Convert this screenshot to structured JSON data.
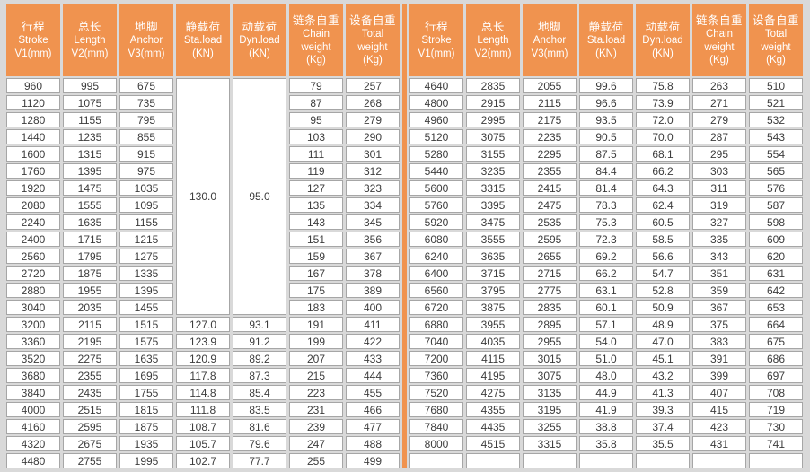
{
  "colors": {
    "header_bg": "#F0934F",
    "header_text": "#FFFFFF",
    "cell_bg": "#FFFFFF",
    "cell_border": "#A6A6A6",
    "cell_text": "#3C3C3C",
    "gutter_bg": "#D9D9D9",
    "divider": "#F0934F"
  },
  "columns": [
    {
      "id": "stroke",
      "lines": [
        "行程",
        "Stroke",
        "V1(mm)"
      ]
    },
    {
      "id": "length",
      "lines": [
        "总长",
        "Length",
        "V2(mm)"
      ]
    },
    {
      "id": "anchor",
      "lines": [
        "地脚",
        "Anchor",
        "V3(mm)"
      ]
    },
    {
      "id": "sta-load",
      "lines": [
        "静载荷",
        "Sta.load",
        "(KN)"
      ]
    },
    {
      "id": "dyn-load",
      "lines": [
        "动载荷",
        "Dyn.load",
        "(KN)"
      ]
    },
    {
      "id": "chain-weight",
      "lines": [
        "链条自重",
        "Chain",
        "weight",
        "(Kg)"
      ]
    },
    {
      "id": "total-weight",
      "lines": [
        "设备自重",
        "Total",
        "weight",
        "(Kg)"
      ]
    }
  ],
  "tables": {
    "left": {
      "merges": [
        {
          "col": 3,
          "row": 0,
          "span": 14,
          "value": "130.0"
        },
        {
          "col": 4,
          "row": 0,
          "span": 14,
          "value": "95.0"
        }
      ],
      "rows": [
        [
          "960",
          "995",
          "675",
          null,
          null,
          "79",
          "257"
        ],
        [
          "1120",
          "1075",
          "735",
          null,
          null,
          "87",
          "268"
        ],
        [
          "1280",
          "1155",
          "795",
          null,
          null,
          "95",
          "279"
        ],
        [
          "1440",
          "1235",
          "855",
          null,
          null,
          "103",
          "290"
        ],
        [
          "1600",
          "1315",
          "915",
          null,
          null,
          "111",
          "301"
        ],
        [
          "1760",
          "1395",
          "975",
          null,
          null,
          "119",
          "312"
        ],
        [
          "1920",
          "1475",
          "1035",
          null,
          null,
          "127",
          "323"
        ],
        [
          "2080",
          "1555",
          "1095",
          null,
          null,
          "135",
          "334"
        ],
        [
          "2240",
          "1635",
          "1155",
          null,
          null,
          "143",
          "345"
        ],
        [
          "2400",
          "1715",
          "1215",
          null,
          null,
          "151",
          "356"
        ],
        [
          "2560",
          "1795",
          "1275",
          null,
          null,
          "159",
          "367"
        ],
        [
          "2720",
          "1875",
          "1335",
          null,
          null,
          "167",
          "378"
        ],
        [
          "2880",
          "1955",
          "1395",
          null,
          null,
          "175",
          "389"
        ],
        [
          "3040",
          "2035",
          "1455",
          null,
          null,
          "183",
          "400"
        ],
        [
          "3200",
          "2115",
          "1515",
          "127.0",
          "93.1",
          "191",
          "411"
        ],
        [
          "3360",
          "2195",
          "1575",
          "123.9",
          "91.2",
          "199",
          "422"
        ],
        [
          "3520",
          "2275",
          "1635",
          "120.9",
          "89.2",
          "207",
          "433"
        ],
        [
          "3680",
          "2355",
          "1695",
          "117.8",
          "87.3",
          "215",
          "444"
        ],
        [
          "3840",
          "2435",
          "1755",
          "114.8",
          "85.4",
          "223",
          "455"
        ],
        [
          "4000",
          "2515",
          "1815",
          "111.8",
          "83.5",
          "231",
          "466"
        ],
        [
          "4160",
          "2595",
          "1875",
          "108.7",
          "81.6",
          "239",
          "477"
        ],
        [
          "4320",
          "2675",
          "1935",
          "105.7",
          "79.6",
          "247",
          "488"
        ],
        [
          "4480",
          "2755",
          "1995",
          "102.7",
          "77.7",
          "255",
          "499"
        ]
      ]
    },
    "right": {
      "merges": [],
      "rows": [
        [
          "4640",
          "2835",
          "2055",
          "99.6",
          "75.8",
          "263",
          "510"
        ],
        [
          "4800",
          "2915",
          "2115",
          "96.6",
          "73.9",
          "271",
          "521"
        ],
        [
          "4960",
          "2995",
          "2175",
          "93.5",
          "72.0",
          "279",
          "532"
        ],
        [
          "5120",
          "3075",
          "2235",
          "90.5",
          "70.0",
          "287",
          "543"
        ],
        [
          "5280",
          "3155",
          "2295",
          "87.5",
          "68.1",
          "295",
          "554"
        ],
        [
          "5440",
          "3235",
          "2355",
          "84.4",
          "66.2",
          "303",
          "565"
        ],
        [
          "5600",
          "3315",
          "2415",
          "81.4",
          "64.3",
          "311",
          "576"
        ],
        [
          "5760",
          "3395",
          "2475",
          "78.3",
          "62.4",
          "319",
          "587"
        ],
        [
          "5920",
          "3475",
          "2535",
          "75.3",
          "60.5",
          "327",
          "598"
        ],
        [
          "6080",
          "3555",
          "2595",
          "72.3",
          "58.5",
          "335",
          "609"
        ],
        [
          "6240",
          "3635",
          "2655",
          "69.2",
          "56.6",
          "343",
          "620"
        ],
        [
          "6400",
          "3715",
          "2715",
          "66.2",
          "54.7",
          "351",
          "631"
        ],
        [
          "6560",
          "3795",
          "2775",
          "63.1",
          "52.8",
          "359",
          "642"
        ],
        [
          "6720",
          "3875",
          "2835",
          "60.1",
          "50.9",
          "367",
          "653"
        ],
        [
          "6880",
          "3955",
          "2895",
          "57.1",
          "48.9",
          "375",
          "664"
        ],
        [
          "7040",
          "4035",
          "2955",
          "54.0",
          "47.0",
          "383",
          "675"
        ],
        [
          "7200",
          "4115",
          "3015",
          "51.0",
          "45.1",
          "391",
          "686"
        ],
        [
          "7360",
          "4195",
          "3075",
          "48.0",
          "43.2",
          "399",
          "697"
        ],
        [
          "7520",
          "4275",
          "3135",
          "44.9",
          "41.3",
          "407",
          "708"
        ],
        [
          "7680",
          "4355",
          "3195",
          "41.9",
          "39.3",
          "415",
          "719"
        ],
        [
          "7840",
          "4435",
          "3255",
          "38.8",
          "37.4",
          "423",
          "730"
        ],
        [
          "8000",
          "4515",
          "3315",
          "35.8",
          "35.5",
          "431",
          "741"
        ],
        [
          "",
          "",
          "",
          "",
          "",
          "",
          ""
        ]
      ]
    }
  }
}
